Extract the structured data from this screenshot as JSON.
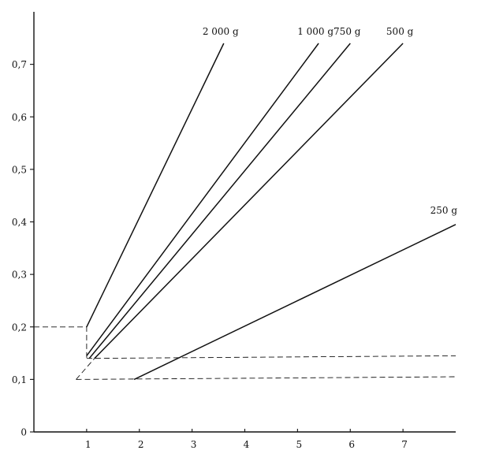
{
  "chart_data": {
    "type": "line",
    "title": "",
    "xlabel": "",
    "ylabel": "",
    "xlim": [
      0,
      8
    ],
    "ylim": [
      0,
      0.8
    ],
    "x_ticks": [
      {
        "value": 1,
        "label": "1"
      },
      {
        "value": 2,
        "label": "2"
      },
      {
        "value": 3,
        "label": "3"
      },
      {
        "value": 4,
        "label": "4"
      },
      {
        "value": 5,
        "label": "5"
      },
      {
        "value": 6,
        "label": "6"
      },
      {
        "value": 7,
        "label": "7"
      }
    ],
    "y_ticks": [
      {
        "value": 0,
        "label": "0"
      },
      {
        "value": 0.1,
        "label": "0,1"
      },
      {
        "value": 0.2,
        "label": "0,2"
      },
      {
        "value": 0.3,
        "label": "0,3"
      },
      {
        "value": 0.4,
        "label": "0,4"
      },
      {
        "value": 0.5,
        "label": "0,5"
      },
      {
        "value": 0.6,
        "label": "0,6"
      },
      {
        "value": 0.7,
        "label": "0,7"
      }
    ],
    "grid": false,
    "line_color": "#111111",
    "series": [
      {
        "name": "2000 g",
        "label": "2 000 g",
        "points": [
          [
            1.0,
            0.2
          ],
          [
            3.6,
            0.74
          ]
        ]
      },
      {
        "name": "1000 g",
        "label": "1 000 g",
        "points": [
          [
            1.0,
            0.145
          ],
          [
            5.4,
            0.74
          ]
        ]
      },
      {
        "name": "750 g",
        "label": "750 g",
        "points": [
          [
            1.05,
            0.14
          ],
          [
            6.0,
            0.74
          ]
        ]
      },
      {
        "name": "500 g",
        "label": "500 g",
        "points": [
          [
            1.15,
            0.14
          ],
          [
            7.0,
            0.74
          ]
        ]
      },
      {
        "name": "250 g",
        "label": "250 g",
        "points": [
          [
            1.9,
            0.1
          ],
          [
            8.0,
            0.395
          ]
        ]
      }
    ],
    "reference_lines": [
      {
        "points": [
          [
            0,
            0.2
          ],
          [
            1.0,
            0.2
          ],
          [
            1.0,
            0.14
          ]
        ]
      },
      {
        "points": [
          [
            1.0,
            0.14
          ],
          [
            8.0,
            0.145
          ]
        ]
      },
      {
        "points": [
          [
            0.8,
            0.1
          ],
          [
            8.0,
            0.105
          ]
        ]
      },
      {
        "points": [
          [
            0.8,
            0.1
          ],
          [
            1.15,
            0.14
          ]
        ]
      }
    ]
  }
}
